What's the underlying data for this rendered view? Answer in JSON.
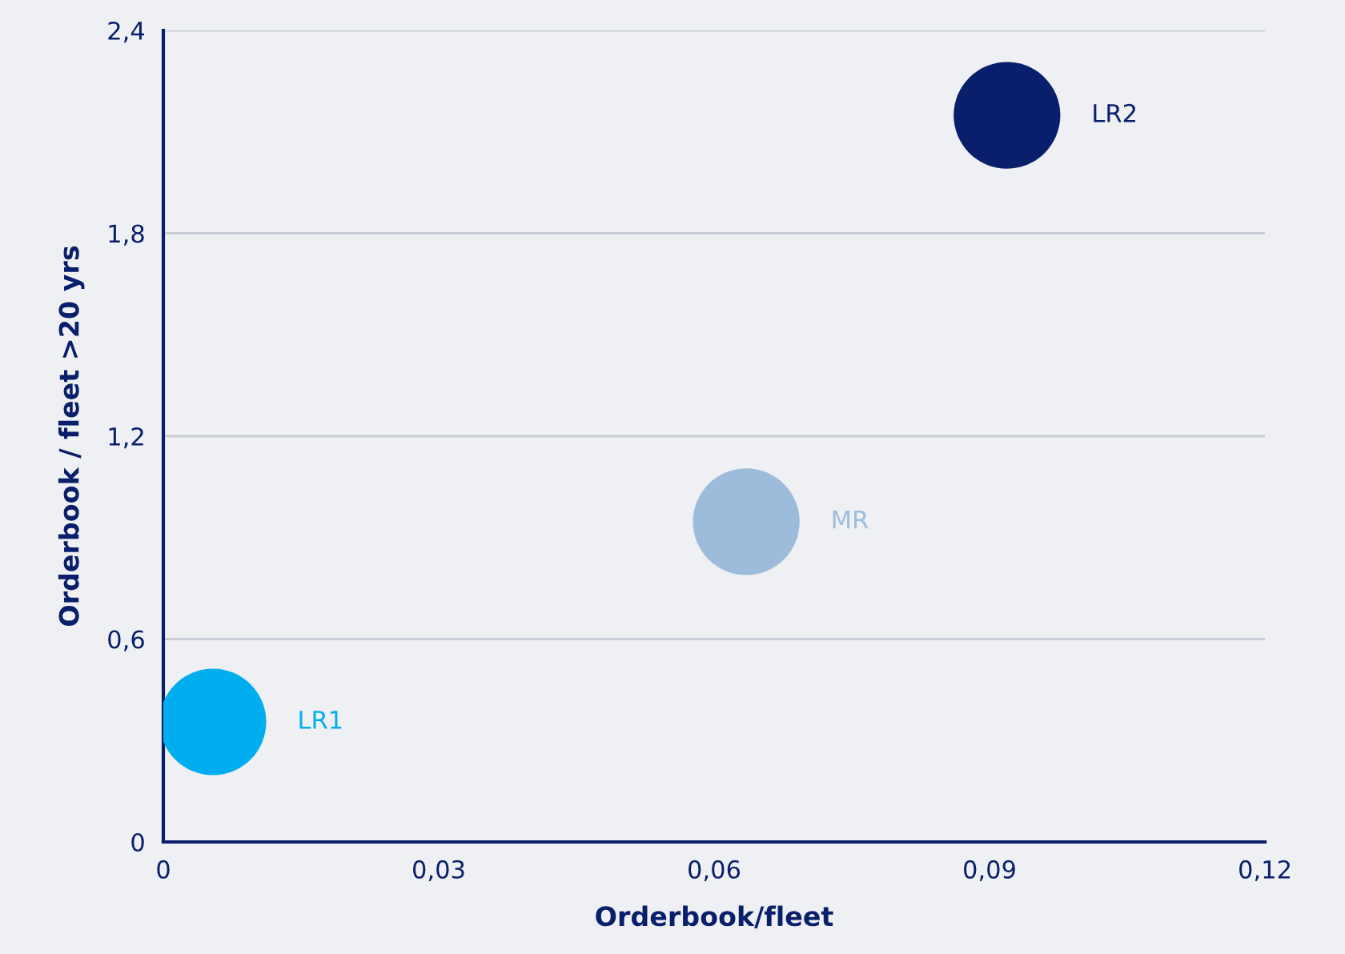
{
  "chart_data": {
    "type": "scatter",
    "xlabel": "Orderbook/fleet",
    "ylabel": "Orderbook / fleet >20 yrs",
    "series": [
      {
        "name": "LR1",
        "color": "#00aeef",
        "x": [
          0.0054
        ],
        "values": [
          0.355
        ]
      },
      {
        "name": "MR",
        "color": "#9dbcdc",
        "x": [
          0.0635
        ],
        "values": [
          0.947
        ]
      },
      {
        "name": "LR2",
        "color": "#0a1f6b",
        "x": [
          0.0919
        ],
        "values": [
          2.149
        ]
      }
    ],
    "xlim": [
      0,
      0.12
    ],
    "xticks": [
      0,
      {
        "value": 0.03,
        "label": "0,03"
      },
      {
        "value": 0.06,
        "label": "0,06"
      },
      {
        "value": 0.09,
        "label": "0,09"
      },
      {
        "value": 0.12,
        "label": "0,12"
      }
    ],
    "ylim": [
      0,
      2.4
    ],
    "yticks": [
      0,
      {
        "value": 0.6,
        "label": "0,6"
      },
      {
        "value": 1.2,
        "label": "1,2"
      },
      {
        "value": 1.8,
        "label": "1,8"
      },
      {
        "value": 2.4,
        "label": "2,4"
      }
    ],
    "grid": "y",
    "marker": "circle",
    "legend": false
  }
}
